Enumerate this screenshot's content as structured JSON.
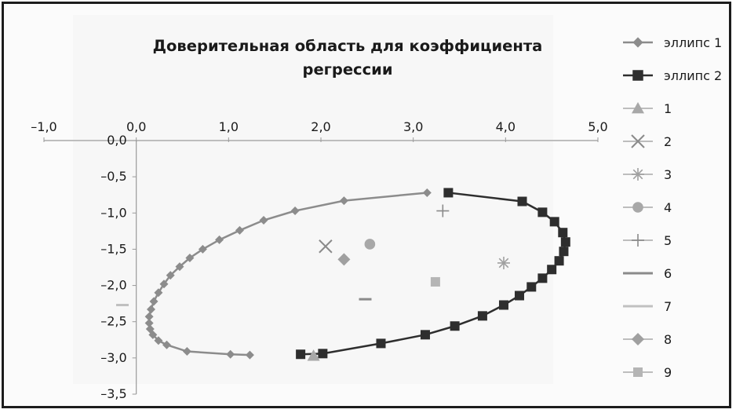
{
  "chart_data": {
    "type": "scatter",
    "title": "Доверительная область для коэффициента регрессии",
    "title_lines": [
      "Доверительная область для коэффициента",
      "регрессии"
    ],
    "xlim": [
      -1.0,
      5.0
    ],
    "ylim": [
      -3.5,
      0.0
    ],
    "x_ticks": [
      -1.0,
      0.0,
      1.0,
      2.0,
      3.0,
      4.0,
      5.0
    ],
    "y_ticks": [
      0.0,
      -0.5,
      -1.0,
      -1.5,
      -2.0,
      -2.5,
      -3.0,
      -3.5
    ],
    "x_tick_labels": [
      "–1,0",
      "0,0",
      "1,0",
      "2,0",
      "3,0",
      "4,0",
      "5,0"
    ],
    "y_tick_labels": [
      "0,0",
      "–0,5",
      "–1,0",
      "–1,5",
      "–2,0",
      "–2,5",
      "–3,0",
      "–3,5"
    ],
    "x_axis_position": "top",
    "grid": false,
    "legend_position": "right",
    "series": [
      {
        "name": "эллипс 1",
        "marker": "diamond-small",
        "line": true,
        "color": "#8c8c8c",
        "x": [
          3.15,
          2.25,
          1.72,
          1.38,
          1.12,
          0.9,
          0.72,
          0.58,
          0.47,
          0.37,
          0.3,
          0.24,
          0.19,
          0.16,
          0.14,
          0.14,
          0.15,
          0.18,
          0.24,
          0.33,
          0.55,
          1.02,
          1.23
        ],
        "y": [
          -0.72,
          -0.83,
          -0.97,
          -1.1,
          -1.24,
          -1.37,
          -1.5,
          -1.62,
          -1.74,
          -1.86,
          -1.98,
          -2.1,
          -2.22,
          -2.33,
          -2.43,
          -2.52,
          -2.6,
          -2.68,
          -2.76,
          -2.82,
          -2.91,
          -2.95,
          -2.96
        ]
      },
      {
        "name": "эллипс 2",
        "marker": "square",
        "line": true,
        "color": "#2e2e2e",
        "x": [
          3.38,
          4.18,
          4.4,
          4.53,
          4.62,
          4.65,
          4.63,
          4.58,
          4.5,
          4.4,
          4.28,
          4.15,
          3.98,
          3.75,
          3.45,
          3.13,
          2.65,
          2.02,
          1.78
        ],
        "y": [
          -0.72,
          -0.84,
          -0.99,
          -1.12,
          -1.27,
          -1.4,
          -1.53,
          -1.66,
          -1.78,
          -1.9,
          -2.02,
          -2.14,
          -2.27,
          -2.42,
          -2.56,
          -2.68,
          -2.8,
          -2.94,
          -2.95
        ]
      },
      {
        "name": "1",
        "marker": "triangle",
        "line": false,
        "color": "#a8a8a8",
        "x": [
          1.92
        ],
        "y": [
          -2.97
        ]
      },
      {
        "name": "2",
        "marker": "x",
        "line": false,
        "color": "#8a8a8a",
        "x": [
          2.05
        ],
        "y": [
          -1.46
        ]
      },
      {
        "name": "3",
        "marker": "star",
        "line": false,
        "color": "#a0a0a0",
        "x": [
          3.98
        ],
        "y": [
          -1.69
        ]
      },
      {
        "name": "4",
        "marker": "circle",
        "line": false,
        "color": "#a8a8a8",
        "x": [
          2.53
        ],
        "y": [
          -1.43
        ]
      },
      {
        "name": "5",
        "marker": "plus",
        "line": false,
        "color": "#8a8a8a",
        "x": [
          3.32
        ],
        "y": [
          -0.97
        ]
      },
      {
        "name": "6",
        "marker": "dash",
        "line": false,
        "color": "#8a8a8a",
        "x": [
          2.48
        ],
        "y": [
          -2.19
        ]
      },
      {
        "name": "7",
        "marker": "dash",
        "line": false,
        "color": "#c0c0c0",
        "x": [
          -0.15
        ],
        "y": [
          -2.27
        ]
      },
      {
        "name": "8",
        "marker": "diamond",
        "line": false,
        "color": "#a0a0a0",
        "x": [
          2.25
        ],
        "y": [
          -1.64
        ]
      },
      {
        "name": "9",
        "marker": "square",
        "line": false,
        "color": "#b5b5b5",
        "x": [
          3.24
        ],
        "y": [
          -1.95
        ]
      }
    ]
  }
}
